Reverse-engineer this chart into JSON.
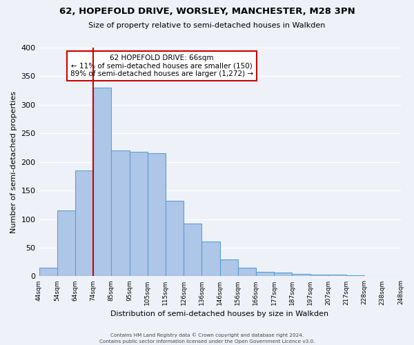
{
  "title": "62, HOPEFOLD DRIVE, WORSLEY, MANCHESTER, M28 3PN",
  "subtitle": "Size of property relative to semi-detached houses in Walkden",
  "xlabel": "Distribution of semi-detached houses by size in Walkden",
  "ylabel": "Number of semi-detached properties",
  "bar_labels": [
    "44sqm",
    "54sqm",
    "64sqm",
    "74sqm",
    "85sqm",
    "95sqm",
    "105sqm",
    "115sqm",
    "126sqm",
    "136sqm",
    "146sqm",
    "156sqm",
    "166sqm",
    "177sqm",
    "187sqm",
    "197sqm",
    "207sqm",
    "217sqm",
    "228sqm",
    "238sqm",
    "248sqm"
  ],
  "bar_values": [
    15,
    115,
    185,
    330,
    220,
    218,
    215,
    132,
    92,
    61,
    30,
    15,
    8,
    7,
    4,
    3,
    3,
    2,
    1,
    1
  ],
  "bar_color": "#aec6e8",
  "bar_edge_color": "#5a9fd4",
  "red_line_x": 3,
  "annotation_title": "62 HOPEFOLD DRIVE: 66sqm",
  "annotation_line1": "← 11% of semi-detached houses are smaller (150)",
  "annotation_line2": "89% of semi-detached houses are larger (1,272) →",
  "annotation_box_color": "#ffffff",
  "annotation_box_edge_color": "#cc0000",
  "red_line_color": "#cc0000",
  "ylim": [
    0,
    400
  ],
  "yticks": [
    0,
    50,
    100,
    150,
    200,
    250,
    300,
    350,
    400
  ],
  "background_color": "#eef2f8",
  "footer1": "Contains HM Land Registry data © Crown copyright and database right 2024.",
  "footer2": "Contains public sector information licensed under the Open Government Licence v3.0."
}
